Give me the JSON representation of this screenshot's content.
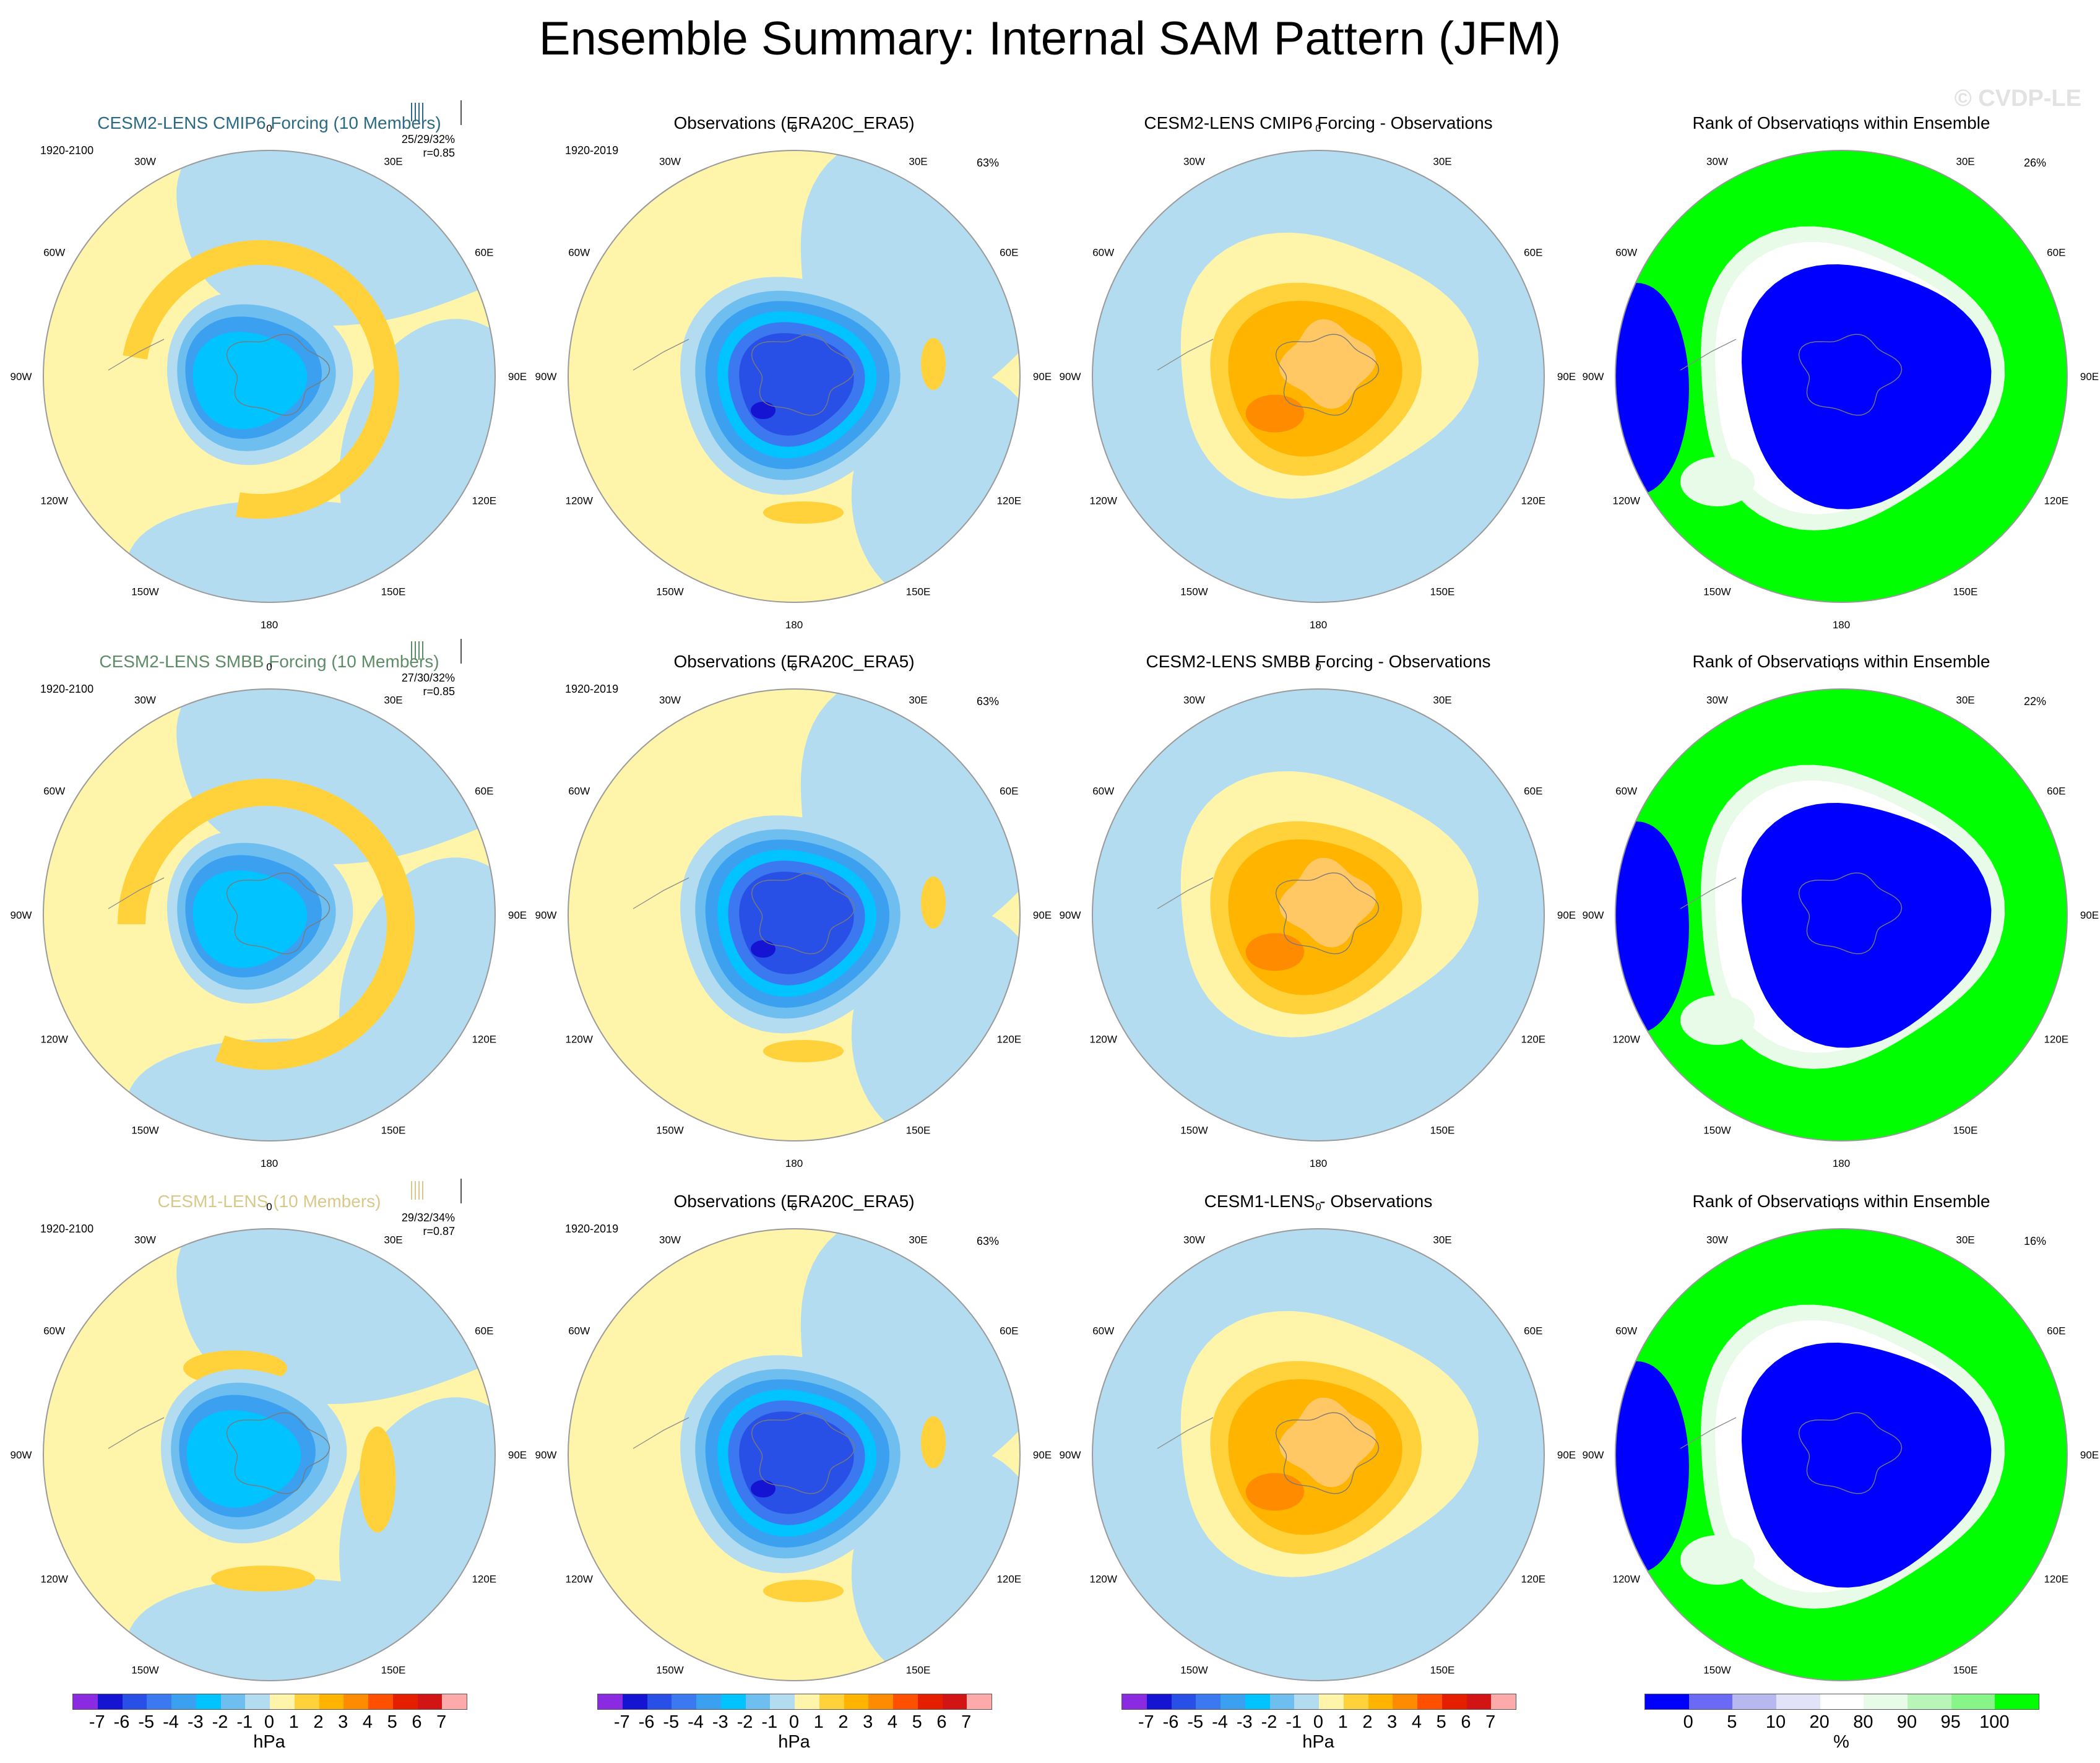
{
  "figure": {
    "title": "Ensemble Summary: Internal SAM Pattern (JFM)",
    "watermark": "© CVDP-LE"
  },
  "lon_labels": [
    "0",
    "30E",
    "60E",
    "90E",
    "120E",
    "150E",
    "180",
    "150W",
    "120W",
    "90W",
    "60W",
    "30W"
  ],
  "rows": [
    {
      "model": {
        "title": "CESM2-LENS CMIP6 Forcing (10 Members)",
        "title_color": "#2b6a82",
        "period": "1920-2100",
        "stats": "25/29/32%",
        "corr": "r=0.85",
        "pattern": "cmip6"
      },
      "obs": {
        "title": "Observations (ERA20C_ERA5)",
        "period": "1920-2019",
        "pct": "63%"
      },
      "diff": {
        "title": "CESM2-LENS CMIP6 Forcing - Observations"
      },
      "rank": {
        "title": "Rank of Observations within Ensemble",
        "pct": "26%"
      }
    },
    {
      "model": {
        "title": "CESM2-LENS SMBB Forcing (10 Members)",
        "title_color": "#5e8c66",
        "period": "1920-2100",
        "stats": "27/30/32%",
        "corr": "r=0.85",
        "pattern": "smbb"
      },
      "obs": {
        "title": "Observations (ERA20C_ERA5)",
        "period": "1920-2019",
        "pct": "63%"
      },
      "diff": {
        "title": "CESM2-LENS SMBB Forcing - Observations"
      },
      "rank": {
        "title": "Rank of Observations within Ensemble",
        "pct": "22%"
      }
    },
    {
      "model": {
        "title": "CESM1-LENS (10 Members)",
        "title_color": "#d8c98a",
        "period": "1920-2100",
        "stats": "29/32/34%",
        "corr": "r=0.87",
        "pattern": "cesm1"
      },
      "obs": {
        "title": "Observations (ERA20C_ERA5)",
        "period": "1920-2019",
        "pct": "63%"
      },
      "diff": {
        "title": "CESM1-LENS - Observations"
      },
      "rank": {
        "title": "Rank of Observations within Ensemble",
        "pct": "16%"
      }
    }
  ],
  "colorbars": {
    "hpa": {
      "colors": [
        "#8a2be2",
        "#1414d2",
        "#2850e6",
        "#3c78f0",
        "#3ca0f0",
        "#00c3ff",
        "#6ebef0",
        "#b4dcf0",
        "#fff5aa",
        "#ffd23c",
        "#ffb400",
        "#ff8c00",
        "#ff5000",
        "#e61e00",
        "#d21414",
        "#ffaaaa"
      ],
      "ticks": [
        "-7",
        "-6",
        "-5",
        "-4",
        "-3",
        "-2",
        "-1",
        "0",
        "1",
        "2",
        "3",
        "4",
        "5",
        "6",
        "7"
      ],
      "unit": "hPa"
    },
    "rank": {
      "colors": [
        "#0000ff",
        "#6a6af5",
        "#b8b8f0",
        "#e2e2f8",
        "#ffffff",
        "#e8fae8",
        "#b8f5b8",
        "#88f588",
        "#00ff00"
      ],
      "ticks": [
        "0",
        "5",
        "10",
        "20",
        "80",
        "90",
        "95",
        "100"
      ],
      "unit": "%"
    }
  },
  "palette": {
    "pos1": "#fff5aa",
    "pos2": "#ffd23c",
    "pos3": "#ffb400",
    "pos4": "#ff8c00",
    "neg1": "#b4dcf0",
    "neg2": "#6ebef0",
    "neg3": "#3ca0f0",
    "neg4": "#00c3ff",
    "deep1": "#2850e6",
    "deep2": "#1414d2",
    "rank_blue": "#0000ff",
    "rank_green": "#00ff00",
    "rank_pale": "#e8fae8",
    "rank_lav": "#e2e2f8"
  }
}
